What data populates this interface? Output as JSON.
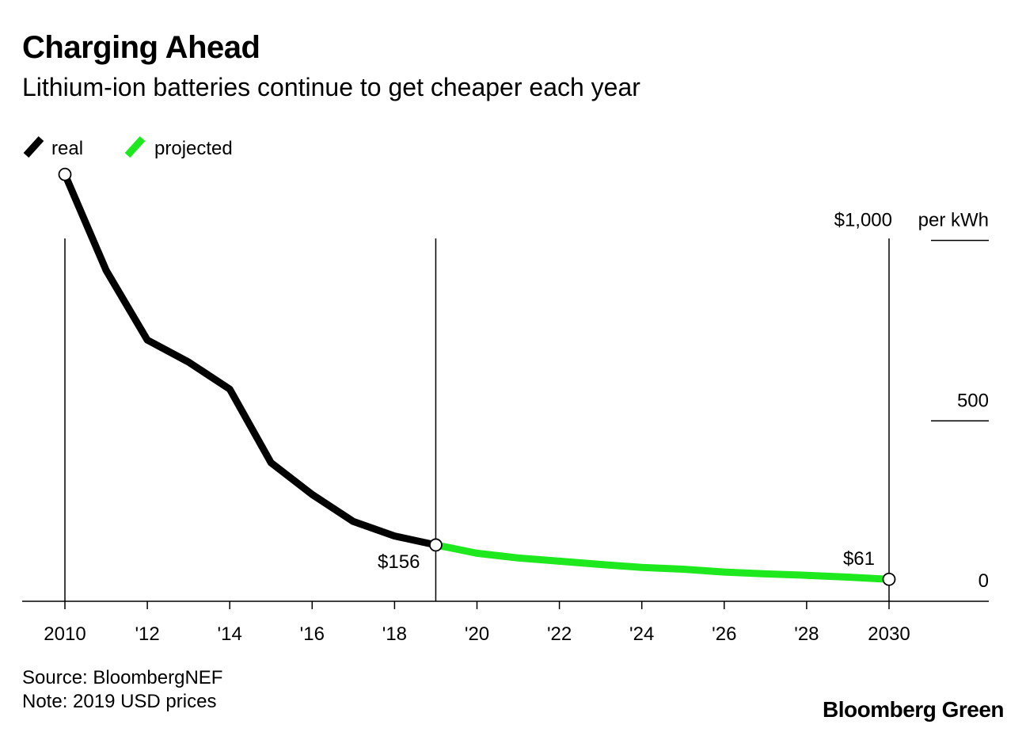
{
  "title": "Charging Ahead",
  "subtitle": "Lithium-ion batteries continue to get cheaper each year",
  "source": "Source: BloombergNEF",
  "note": "Note: 2019 USD prices",
  "brand": "Bloomberg Green",
  "colors": {
    "real": "#000000",
    "projected": "#1ee81e",
    "axis": "#000000"
  },
  "chart_data": {
    "type": "line",
    "title": "Charging Ahead",
    "subtitle": "Lithium-ion batteries continue to get cheaper each year",
    "xlabel": "",
    "ylabel": "per kWh",
    "xlim": [
      2009,
      2032.5
    ],
    "ylim": [
      0,
      1200
    ],
    "y_ticks": [
      {
        "value": 0,
        "label": "0"
      },
      {
        "value": 500,
        "label": "500"
      },
      {
        "value": 1000,
        "label": "$1,000",
        "unit": "per kWh"
      }
    ],
    "x_ticks": [
      {
        "value": 2010,
        "label": "2010"
      },
      {
        "value": 2012,
        "label": "'12"
      },
      {
        "value": 2014,
        "label": "'14"
      },
      {
        "value": 2016,
        "label": "'16"
      },
      {
        "value": 2018,
        "label": "'18"
      },
      {
        "value": 2020,
        "label": "'20"
      },
      {
        "value": 2022,
        "label": "'22"
      },
      {
        "value": 2024,
        "label": "'24"
      },
      {
        "value": 2026,
        "label": "'26"
      },
      {
        "value": 2028,
        "label": "'28"
      },
      {
        "value": 2030,
        "label": "2030"
      }
    ],
    "vertical_lines": [
      2010,
      2019,
      2030
    ],
    "legend": {
      "placement": "top-left",
      "entries": [
        "real",
        "projected"
      ]
    },
    "grid": false,
    "series": [
      {
        "name": "real",
        "x": [
          2010,
          2011,
          2012,
          2013,
          2014,
          2015,
          2016,
          2017,
          2018,
          2019
        ],
        "values": [
          1183,
          917,
          724,
          663,
          588,
          384,
          296,
          221,
          181,
          156
        ]
      },
      {
        "name": "projected",
        "x": [
          2019,
          2020,
          2021,
          2022,
          2023,
          2024,
          2025,
          2026,
          2027,
          2028,
          2029,
          2030
        ],
        "values": [
          156,
          133,
          120,
          111,
          102,
          94,
          89,
          81,
          76,
          72,
          67,
          61
        ]
      }
    ],
    "annotations": [
      {
        "x": 2019,
        "y": 156,
        "label": "$156"
      },
      {
        "x": 2030,
        "y": 61,
        "label": "$61"
      }
    ]
  }
}
